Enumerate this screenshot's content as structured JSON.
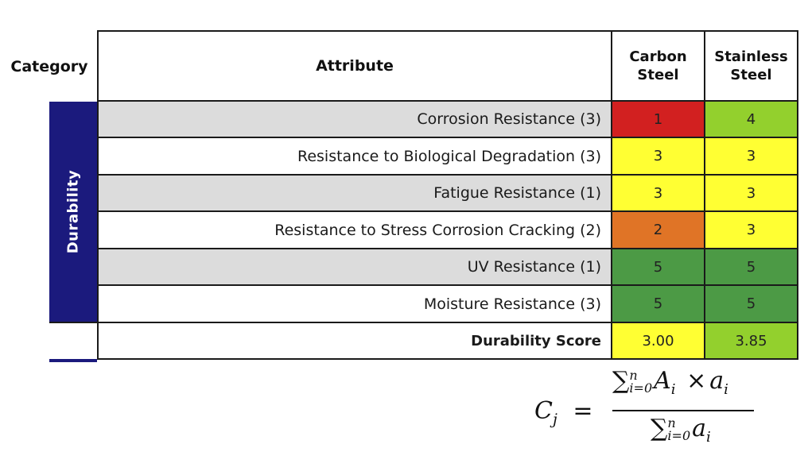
{
  "table": {
    "headers": {
      "category": "Category",
      "attribute": "Attribute",
      "col1_line1": "Carbon",
      "col1_line2": "Steel",
      "col2_line1": "Stainless",
      "col2_line2": "Steel"
    },
    "category_label": "Durability",
    "rows": [
      {
        "attribute": "Corrosion Resistance (3)",
        "carbon": "1",
        "stainless": "4",
        "carbon_color": "#d22020",
        "stainless_color": "#93d02d"
      },
      {
        "attribute": "Resistance to Biological Degradation (3)",
        "carbon": "3",
        "stainless": "3",
        "carbon_color": "#ffff33",
        "stainless_color": "#ffff33"
      },
      {
        "attribute": "Fatigue Resistance (1)",
        "carbon": "3",
        "stainless": "3",
        "carbon_color": "#ffff33",
        "stainless_color": "#ffff33"
      },
      {
        "attribute": "Resistance to Stress Corrosion Cracking (2)",
        "carbon": "2",
        "stainless": "3",
        "carbon_color": "#e07426",
        "stainless_color": "#ffff33"
      },
      {
        "attribute": "UV Resistance (1)",
        "carbon": "5",
        "stainless": "5",
        "carbon_color": "#4c9a45",
        "stainless_color": "#4c9a45"
      },
      {
        "attribute": "Moisture Resistance (3)",
        "carbon": "5",
        "stainless": "5",
        "carbon_color": "#4c9a45",
        "stainless_color": "#4c9a45"
      }
    ],
    "score_row": {
      "label": "Durability Score",
      "carbon": "3.00",
      "stainless": "3.85",
      "carbon_color": "#ffff33",
      "stainless_color": "#93d02d"
    },
    "colors": {
      "category_band": "#1b1a7d",
      "row_gray": "#dcdcdc"
    }
  },
  "formula": {
    "lhs_var": "C",
    "lhs_sub": "j",
    "equals": "=",
    "sum_symbol": "∑",
    "upper": "n",
    "lower": "i=0",
    "num_A": "A",
    "num_A_sub": "i",
    "times": "×",
    "num_a": "a",
    "num_a_sub": "i",
    "den_a": "a",
    "den_a_sub": "i"
  }
}
